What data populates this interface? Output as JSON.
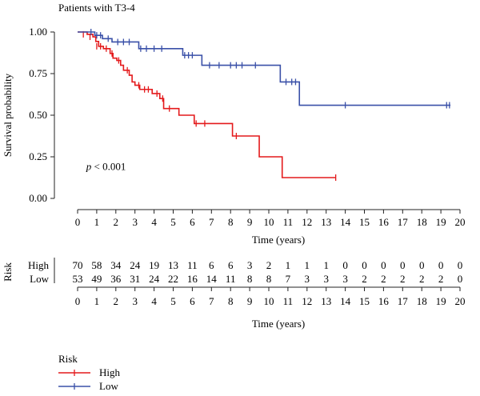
{
  "chart_data": {
    "type": "line",
    "title": "Patients with T3-4",
    "xlabel": "Time (years)",
    "ylabel": "Survival probability",
    "xlim": [
      0,
      20
    ],
    "ylim": [
      0,
      1
    ],
    "x_ticks": [
      0,
      1,
      2,
      3,
      4,
      5,
      6,
      7,
      8,
      9,
      10,
      11,
      12,
      13,
      14,
      15,
      16,
      17,
      18,
      19,
      20
    ],
    "y_ticks": [
      "0.00",
      "0.25",
      "0.50",
      "0.75",
      "1.00"
    ],
    "y_tick_values": [
      0,
      0.25,
      0.5,
      0.75,
      1.0
    ],
    "annotation": {
      "p_label": "p",
      "text": " < 0.001"
    },
    "series": [
      {
        "name": "High",
        "color": "#e41a1c",
        "steps": [
          [
            0,
            1.0
          ],
          [
            0.5,
            0.986
          ],
          [
            0.8,
            0.971
          ],
          [
            0.95,
            0.943
          ],
          [
            1.1,
            0.914
          ],
          [
            1.35,
            0.9
          ],
          [
            1.7,
            0.871
          ],
          [
            1.85,
            0.843
          ],
          [
            2.05,
            0.829
          ],
          [
            2.25,
            0.8
          ],
          [
            2.4,
            0.77
          ],
          [
            2.7,
            0.74
          ],
          [
            2.85,
            0.7
          ],
          [
            3.0,
            0.68
          ],
          [
            3.25,
            0.655
          ],
          [
            3.9,
            0.63
          ],
          [
            4.3,
            0.6
          ],
          [
            4.5,
            0.54
          ],
          [
            5.3,
            0.5
          ],
          [
            6.1,
            0.45
          ],
          [
            8.1,
            0.375
          ],
          [
            9.5,
            0.25
          ],
          [
            10.7,
            0.125
          ]
        ],
        "end": 13.5,
        "censored": [
          [
            0.3,
            0.986
          ],
          [
            0.65,
            0.971
          ],
          [
            1.0,
            0.914
          ],
          [
            1.2,
            0.914
          ],
          [
            1.5,
            0.9
          ],
          [
            1.8,
            0.871
          ],
          [
            2.15,
            0.829
          ],
          [
            2.6,
            0.77
          ],
          [
            3.2,
            0.68
          ],
          [
            3.5,
            0.655
          ],
          [
            3.7,
            0.655
          ],
          [
            4.15,
            0.63
          ],
          [
            4.45,
            0.6
          ],
          [
            4.8,
            0.54
          ],
          [
            6.2,
            0.45
          ],
          [
            6.65,
            0.45
          ],
          [
            8.3,
            0.375
          ],
          [
            13.5,
            0.125
          ]
        ]
      },
      {
        "name": "Low",
        "color": "#3a50a8",
        "steps": [
          [
            0,
            1.0
          ],
          [
            0.9,
            0.98
          ],
          [
            1.3,
            0.96
          ],
          [
            1.8,
            0.94
          ],
          [
            3.2,
            0.9
          ],
          [
            5.5,
            0.86
          ],
          [
            6.5,
            0.8
          ],
          [
            10.6,
            0.7
          ],
          [
            11.6,
            0.56
          ]
        ],
        "end": 19.5,
        "censored": [
          [
            0.7,
            1.0
          ],
          [
            1.0,
            0.98
          ],
          [
            1.2,
            0.98
          ],
          [
            1.6,
            0.96
          ],
          [
            2.1,
            0.94
          ],
          [
            2.4,
            0.94
          ],
          [
            2.7,
            0.94
          ],
          [
            3.3,
            0.9
          ],
          [
            3.6,
            0.9
          ],
          [
            4.0,
            0.9
          ],
          [
            4.4,
            0.9
          ],
          [
            5.6,
            0.86
          ],
          [
            5.8,
            0.86
          ],
          [
            6.0,
            0.86
          ],
          [
            6.9,
            0.8
          ],
          [
            7.4,
            0.8
          ],
          [
            8.0,
            0.8
          ],
          [
            8.3,
            0.8
          ],
          [
            8.6,
            0.8
          ],
          [
            9.3,
            0.8
          ],
          [
            10.9,
            0.7
          ],
          [
            11.2,
            0.7
          ],
          [
            11.4,
            0.7
          ],
          [
            14.0,
            0.56
          ],
          [
            19.3,
            0.56
          ],
          [
            19.45,
            0.56
          ]
        ]
      }
    ],
    "risk_table": {
      "title": "Risk",
      "xlabel": "Time (years)",
      "x_ticks": [
        0,
        1,
        2,
        3,
        4,
        5,
        6,
        7,
        8,
        9,
        10,
        11,
        12,
        13,
        14,
        15,
        16,
        17,
        18,
        19,
        20
      ],
      "rows": [
        {
          "name": "High",
          "values": [
            70,
            58,
            34,
            24,
            19,
            13,
            11,
            6,
            6,
            3,
            2,
            1,
            1,
            1,
            0,
            0,
            0,
            0,
            0,
            0,
            0
          ]
        },
        {
          "name": "Low",
          "values": [
            53,
            49,
            36,
            31,
            24,
            22,
            16,
            14,
            11,
            8,
            8,
            7,
            3,
            3,
            3,
            2,
            2,
            2,
            2,
            2,
            0
          ]
        }
      ]
    },
    "legend": {
      "title": "Risk",
      "position": "bottom-left",
      "entries": [
        "High",
        "Low"
      ]
    }
  }
}
